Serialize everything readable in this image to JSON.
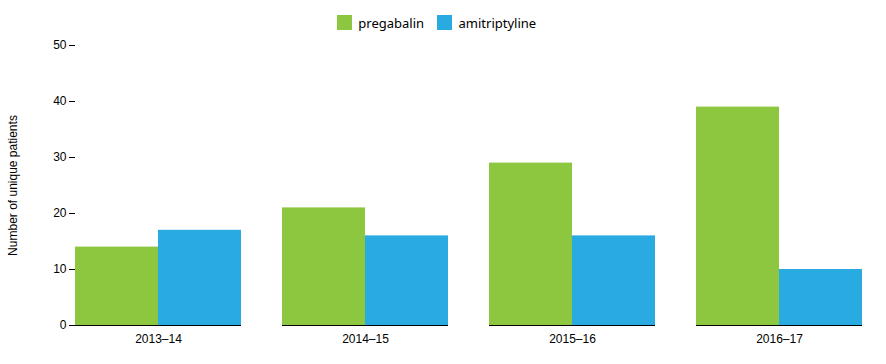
{
  "chart_data": {
    "type": "bar",
    "categories": [
      "2013–14",
      "2014–15",
      "2015–16",
      "2016–17"
    ],
    "series": [
      {
        "name": "pregabalin",
        "color": "#8dc63f",
        "values": [
          14,
          21,
          29,
          39
        ]
      },
      {
        "name": "amitriptyline",
        "color": "#29abe2",
        "values": [
          17,
          16,
          16,
          10
        ]
      }
    ],
    "ylabel": "Number of unique patients",
    "ylim": [
      0,
      50
    ],
    "yticks": [
      0,
      10,
      20,
      30,
      40,
      50
    ],
    "grid": false,
    "legend": "top"
  }
}
